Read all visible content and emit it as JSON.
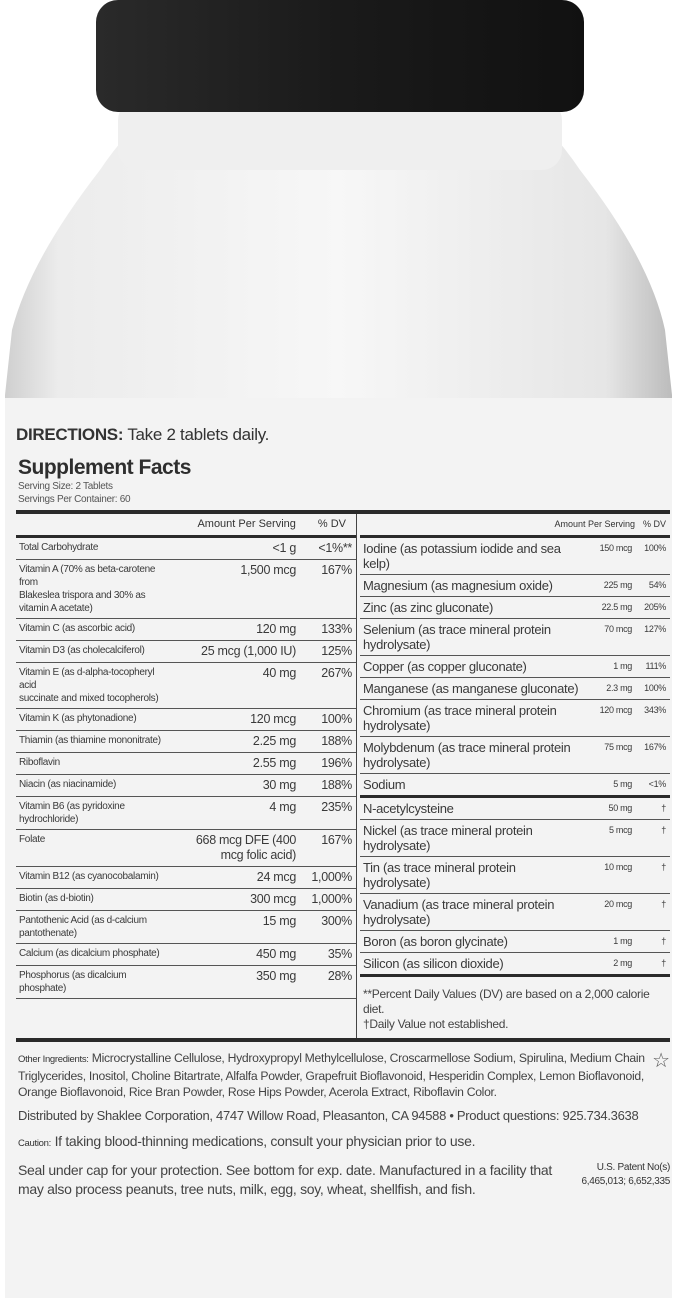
{
  "label": {
    "directions_label": "DIRECTIONS:",
    "directions_text": " Take 2 tablets daily.",
    "title": "Supplement Facts",
    "serving_size": "Serving Size: 2 Tablets",
    "servings_per_container": "Servings Per Container: 60",
    "left_header": {
      "amount": "Amount Per Serving",
      "dv": "% DV"
    },
    "left_rows": [
      {
        "name": "Total Carbohydrate",
        "amount": "<1 g",
        "dv": "<1%**"
      },
      {
        "name": "Vitamin A (70% as beta-carotene from",
        "name2": "Blakeslea trispora and 30% as vitamin A acetate)",
        "amount": "1,500 mcg",
        "dv": "167%"
      },
      {
        "name": "Vitamin C (as ascorbic acid)",
        "amount": "120 mg",
        "dv": "133%"
      },
      {
        "name": "Vitamin D3 (as cholecalciferol)",
        "amount": "25 mcg (1,000 IU)",
        "dv": "125%"
      },
      {
        "name": "Vitamin E (as d-alpha-tocopheryl acid",
        "name2": "succinate and mixed tocopherols)",
        "amount": "40 mg",
        "dv": "267%"
      },
      {
        "name": "Vitamin K (as phytonadione)",
        "amount": "120 mcg",
        "dv": "100%"
      },
      {
        "name": "Thiamin (as thiamine mononitrate)",
        "amount": "2.25 mg",
        "dv": "188%"
      },
      {
        "name": "Riboflavin",
        "amount": "2.55 mg",
        "dv": "196%"
      },
      {
        "name": "Niacin (as niacinamide)",
        "amount": "30 mg",
        "dv": "188%"
      },
      {
        "name": "Vitamin B6 (as pyridoxine hydrochloride)",
        "amount": "4 mg",
        "dv": "235%"
      },
      {
        "name": "Folate",
        "amount": "668 mcg DFE (400 mcg folic acid)",
        "dv": "167%"
      },
      {
        "name": "Vitamin B12 (as cyanocobalamin)",
        "amount": "24 mcg",
        "dv": "1,000%"
      },
      {
        "name": "Biotin (as d-biotin)",
        "amount": "300 mcg",
        "dv": "1,000%"
      },
      {
        "name": "Pantothenic Acid (as d-calcium pantothenate)",
        "amount": "15 mg",
        "dv": "300%"
      },
      {
        "name": "Calcium (as dicalcium phosphate)",
        "amount": "450 mg",
        "dv": "35%"
      },
      {
        "name": "Phosphorus (as dicalcium phosphate)",
        "amount": "350 mg",
        "dv": "28%"
      }
    ],
    "right_header": {
      "amount": "Amount Per Serving",
      "dv": "% DV"
    },
    "right_rows": [
      {
        "name": "Iodine (as potassium iodide and sea kelp)",
        "amount": "150 mcg",
        "dv": "100%"
      },
      {
        "name": "Magnesium (as magnesium oxide)",
        "amount": "225 mg",
        "dv": "54%"
      },
      {
        "name": "Zinc (as zinc gluconate)",
        "amount": "22.5 mg",
        "dv": "205%"
      },
      {
        "name": "Selenium (as trace mineral protein hydrolysate)",
        "amount": "70 mcg",
        "dv": "127%"
      },
      {
        "name": "Copper (as copper gluconate)",
        "amount": "1 mg",
        "dv": "111%"
      },
      {
        "name": "Manganese (as manganese gluconate)",
        "amount": "2.3 mg",
        "dv": "100%"
      },
      {
        "name": "Chromium (as trace mineral protein hydrolysate)",
        "amount": "120 mcg",
        "dv": "343%"
      },
      {
        "name": "Molybdenum (as trace mineral protein hydrolysate)",
        "amount": "75 mcg",
        "dv": "167%"
      },
      {
        "name": "Sodium",
        "amount": "5 mg",
        "dv": "<1%"
      },
      {
        "name": "N-acetylcysteine",
        "amount": "50 mg",
        "dv": "†"
      },
      {
        "name": "Nickel (as trace mineral protein hydrolysate)",
        "amount": "5 mcg",
        "dv": "†"
      },
      {
        "name": "Tin (as trace mineral protein hydrolysate)",
        "amount": "10 mcg",
        "dv": "†"
      },
      {
        "name": "Vanadium (as trace mineral protein hydrolysate)",
        "amount": "20 mcg",
        "dv": "†"
      },
      {
        "name": "Boron (as boron glycinate)",
        "amount": "1 mg",
        "dv": "†"
      },
      {
        "name": "Silicon (as silicon dioxide)",
        "amount": "2 mg",
        "dv": "†"
      }
    ],
    "note_dv": "**Percent Daily Values (DV) are based on a 2,000 calorie diet.",
    "note_dagger": "†Daily Value not established.",
    "other_label": "Other Ingredients:",
    "other_text": " Microcrystalline Cellulose, Hydroxypropyl Methylcellulose, Croscarmellose Sodium, Spirulina, Medium Chain Triglycerides, Inositol, Choline Bitartrate, Alfalfa Powder, Grapefruit Bioflavonoid, Hesperidin Complex, Lemon Bioflavonoid, Orange Bioflavonoid, Rice Bran Powder, Rose Hips Powder, Acerola Extract, Riboflavin Color.",
    "distributed": "Distributed by Shaklee Corporation, 4747 Willow Road, Pleasanton, CA 94588 • Product questions: 925.734.3638",
    "caution_label": "Caution:",
    "caution_text": " If taking blood-thinning medications, consult your physician prior to use.",
    "seal_text": "Seal under cap for your protection. See bottom for exp. date. Manufactured in a facility that may also process peanuts, tree nuts, milk, egg, soy, wheat, shellfish, and fish.",
    "patent_title": "U.S. Patent No(s)",
    "patent_numbers": "6,465,013; 6,652,335",
    "icons": {
      "star": "star-icon"
    }
  },
  "colors": {
    "cap": "#1e1e1e",
    "text": "#3a3a3a",
    "rule": "#2a2a2a"
  }
}
